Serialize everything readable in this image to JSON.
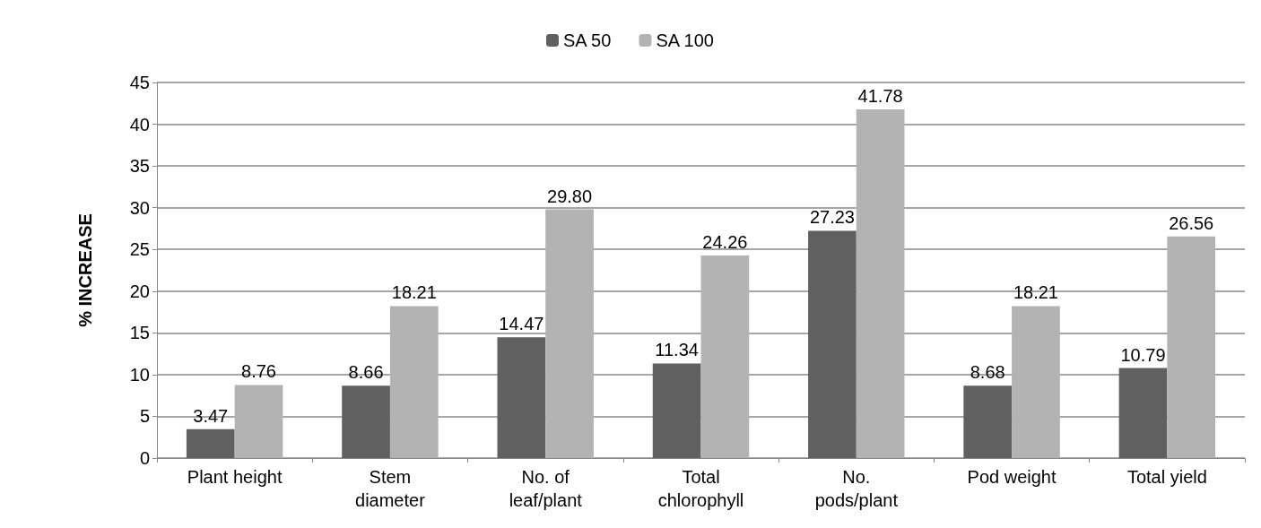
{
  "chart_data": {
    "type": "bar",
    "ylabel": "% INCREASE",
    "categories": [
      "Plant height",
      "Stem\ndiameter",
      "No. of\nleaf/plant",
      "Total\nchlorophyll",
      "No.\npods/plant",
      "Pod weight",
      "Total yield"
    ],
    "series": [
      {
        "name": "SA 50",
        "color": "#606060",
        "values": [
          3.47,
          8.66,
          14.47,
          11.34,
          27.23,
          8.68,
          10.79
        ],
        "value_labels": [
          "3.47",
          "8.66",
          "14.47",
          "11.34",
          "27.23",
          "8.68",
          "10.79"
        ]
      },
      {
        "name": "SA 100",
        "color": "#b3b3b3",
        "values": [
          8.76,
          18.21,
          29.8,
          24.26,
          41.78,
          18.21,
          26.56
        ],
        "value_labels": [
          "8.76",
          "18.21",
          "29.80",
          "24.26",
          "41.78",
          "18.21",
          "26.56"
        ]
      }
    ],
    "ylim": [
      0,
      45
    ],
    "yticks": [
      0,
      5,
      10,
      15,
      20,
      25,
      30,
      35,
      40,
      45
    ],
    "grid": "y",
    "legend": "top"
  }
}
